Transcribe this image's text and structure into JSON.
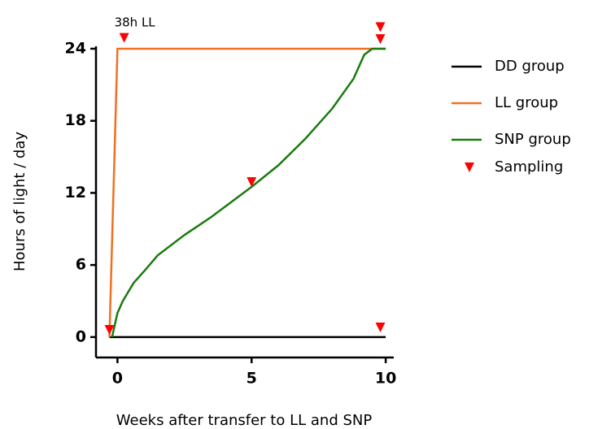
{
  "chart_data": {
    "type": "line",
    "xlabel": "Weeks after transfer to LL and SNP",
    "ylabel": "Hours of light / day",
    "annotation": "38h LL",
    "xlim": [
      -0.8,
      10.3
    ],
    "ylim": [
      -1.7,
      24.2
    ],
    "xticks": [
      0,
      5,
      10
    ],
    "yticks": [
      0,
      6,
      12,
      18,
      24
    ],
    "series": [
      {
        "name": "DD group",
        "color": "#000000",
        "x": [
          -0.3,
          10
        ],
        "values": [
          0,
          0
        ]
      },
      {
        "name": "LL group",
        "color": "#f07020",
        "x": [
          -0.3,
          0,
          10
        ],
        "values": [
          0,
          24,
          24
        ]
      },
      {
        "name": "SNP group",
        "color": "#1a7a10",
        "x": [
          -0.2,
          0,
          0.2,
          0.6,
          1,
          1.5,
          2.5,
          3.5,
          5,
          6,
          7,
          8,
          8.8,
          9.2,
          9.5,
          10
        ],
        "values": [
          0,
          2,
          3,
          4.5,
          5.5,
          6.8,
          8.5,
          10,
          12.5,
          14.3,
          16.5,
          19,
          21.5,
          23.5,
          24,
          24
        ]
      },
      {
        "name": "Sampling",
        "color": "#ff0000",
        "marker": "triangle",
        "x": [
          0.25,
          9.8,
          9.8,
          5,
          -0.3,
          9.8
        ],
        "values": [
          24.9,
          25.8,
          24.8,
          12.9,
          0.6,
          0.8
        ]
      }
    ]
  }
}
